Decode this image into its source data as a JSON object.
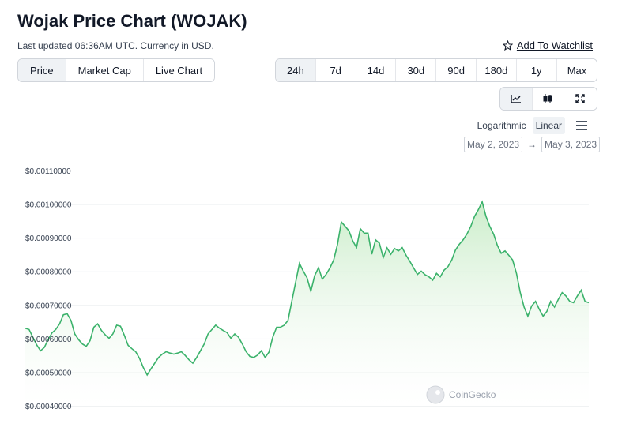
{
  "header": {
    "title": "Wojak Price Chart (WOJAK)",
    "subtitle": "Last updated 06:36AM UTC. Currency in USD.",
    "watchlist_label": "Add To Watchlist"
  },
  "view_tabs": [
    {
      "label": "Price",
      "active": true
    },
    {
      "label": "Market Cap",
      "active": false
    },
    {
      "label": "Live Chart",
      "active": false
    }
  ],
  "range_tabs": [
    {
      "label": "24h",
      "active": true
    },
    {
      "label": "7d",
      "active": false
    },
    {
      "label": "14d",
      "active": false
    },
    {
      "label": "30d",
      "active": false
    },
    {
      "label": "90d",
      "active": false
    },
    {
      "label": "180d",
      "active": false
    },
    {
      "label": "1y",
      "active": false
    },
    {
      "label": "Max",
      "active": false
    }
  ],
  "chart_type_buttons": [
    {
      "icon": "line-chart-icon",
      "active": true
    },
    {
      "icon": "candlestick-icon",
      "active": false
    },
    {
      "icon": "expand-icon",
      "active": false
    }
  ],
  "scale": {
    "logarithmic_label": "Logarithmic",
    "linear_label": "Linear",
    "active": "linear"
  },
  "date_range": {
    "from": "May 2, 2023",
    "arrow": "→",
    "to": "May 3, 2023"
  },
  "watermark": "CoinGecko",
  "colors": {
    "line": "#3bb26b",
    "fill_top": "#c8ecc7",
    "grid": "#eef0f2"
  },
  "chart_data": {
    "type": "area",
    "ylim": [
      0.0004,
      0.0011
    ],
    "yticks": [
      0.0011,
      0.001,
      0.0009,
      0.0008,
      0.0007,
      0.0006,
      0.0005,
      0.0004
    ],
    "ytick_labels": [
      "$0.00110000",
      "$0.00100000",
      "$0.00090000",
      "$0.00080000",
      "$0.00070000",
      "$0.00060000",
      "$0.00050000",
      "$0.00040000"
    ],
    "grid": true,
    "legend": "none",
    "series": [
      {
        "values": [
          0.000632,
          0.000628,
          0.000605,
          0.000582,
          0.000565,
          0.000575,
          0.000598,
          0.000618,
          0.000628,
          0.000645,
          0.000672,
          0.000675,
          0.000655,
          0.000615,
          0.000598,
          0.000585,
          0.000578,
          0.000595,
          0.000635,
          0.000645,
          0.000625,
          0.000612,
          0.000602,
          0.000615,
          0.000641,
          0.000638,
          0.000611,
          0.000581,
          0.000571,
          0.000562,
          0.000542,
          0.000515,
          0.000493,
          0.000511,
          0.000528,
          0.000545,
          0.000555,
          0.000562,
          0.000558,
          0.000555,
          0.000558,
          0.000562,
          0.000551,
          0.000538,
          0.000528,
          0.000545,
          0.000565,
          0.000585,
          0.000615,
          0.000628,
          0.000641,
          0.000632,
          0.000625,
          0.000619,
          0.000602,
          0.000615,
          0.000605,
          0.000585,
          0.000562,
          0.000548,
          0.000545,
          0.000552,
          0.000565,
          0.000545,
          0.000561,
          0.000605,
          0.000635,
          0.000635,
          0.000641,
          0.000655,
          0.000712,
          0.000768,
          0.000825,
          0.000802,
          0.000782,
          0.000742,
          0.000788,
          0.000812,
          0.000778,
          0.000792,
          0.000811,
          0.000835,
          0.000881,
          0.000948,
          0.000935,
          0.000922,
          0.000892,
          0.000872,
          0.000928,
          0.000915,
          0.000915,
          0.000852,
          0.000895,
          0.000885,
          0.000842,
          0.000871,
          0.000852,
          0.000869,
          0.000862,
          0.000872,
          0.000849,
          0.000831,
          0.000811,
          0.000792,
          0.000802,
          0.000791,
          0.000785,
          0.000775,
          0.000795,
          0.000785,
          0.000805,
          0.000815,
          0.000835,
          0.000865,
          0.000882,
          0.000895,
          0.000912,
          0.000935,
          0.000965,
          0.000985,
          0.001008,
          0.000965,
          0.000935,
          0.000912,
          0.000878,
          0.000855,
          0.000862,
          0.000849,
          0.000835,
          0.000795,
          0.000738,
          0.000695,
          0.000668,
          0.000698,
          0.000712,
          0.000688,
          0.000668,
          0.000682,
          0.000712,
          0.000695,
          0.000718,
          0.000738,
          0.000728,
          0.000712,
          0.000708,
          0.000728,
          0.000745,
          0.000712,
          0.000708
        ]
      }
    ]
  }
}
